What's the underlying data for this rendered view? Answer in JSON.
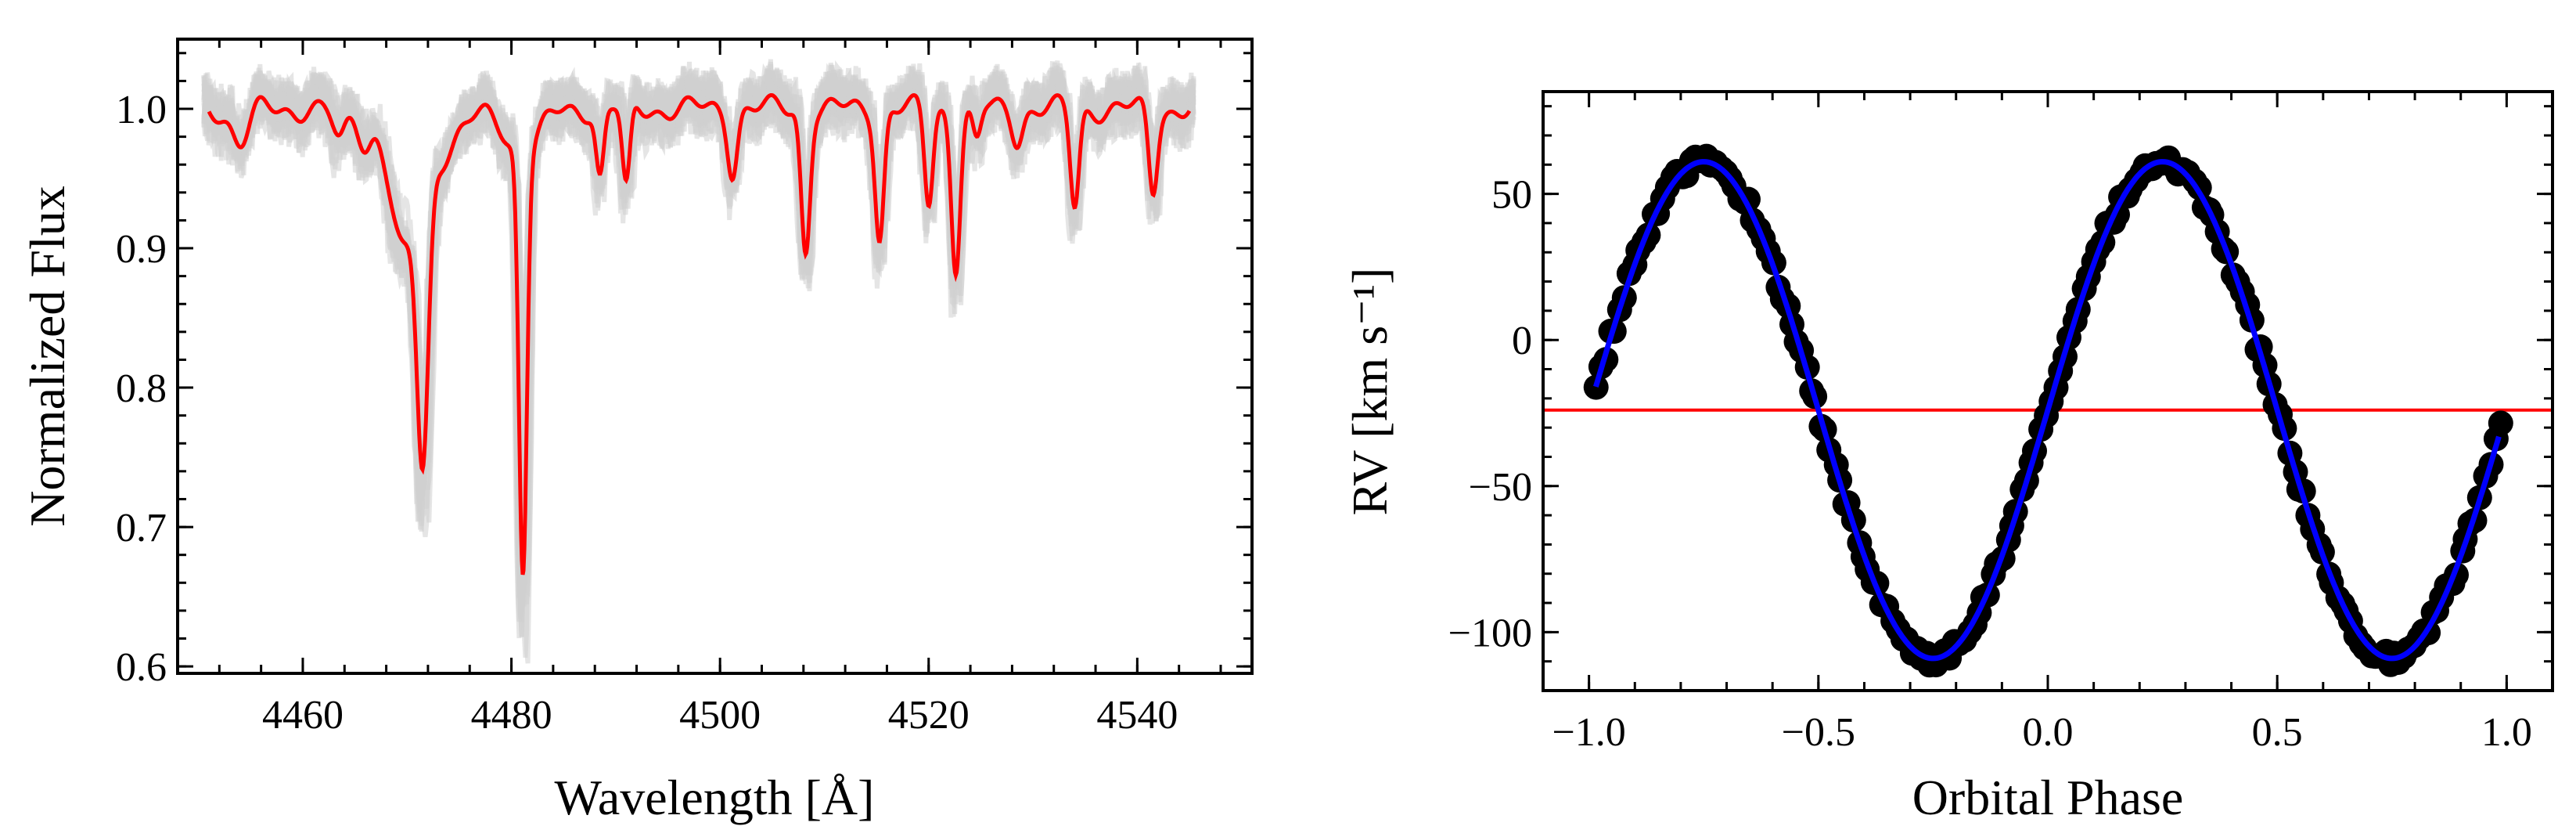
{
  "chart_data": [
    {
      "type": "line",
      "title": "",
      "xlabel": "Wavelength [Å]",
      "ylabel": "Normalized Flux",
      "xlim": [
        4448,
        4551
      ],
      "ylim": [
        0.595,
        1.05
      ],
      "xticks": [
        4460,
        4480,
        4500,
        4520,
        4540
      ],
      "xtick_labels": [
        "4460",
        "4480",
        "4500",
        "4520",
        "4540"
      ],
      "xminor_step": 4,
      "yticks": [
        0.6,
        0.7,
        0.8,
        0.9,
        1.0
      ],
      "ytick_labels": [
        "0.6",
        "0.7",
        "0.8",
        "0.9",
        "1.0"
      ],
      "yminor_step": 0.02,
      "continuum": 1.0,
      "x_start": 4451,
      "x_end": 4545,
      "lines": [
        {
          "center": 4454.0,
          "depth": 0.025,
          "width": 0.8
        },
        {
          "center": 4463.5,
          "depth": 0.025,
          "width": 0.6
        },
        {
          "center": 4466.0,
          "depth": 0.02,
          "width": 0.6
        },
        {
          "center": 4469.5,
          "depth": 0.07,
          "width": 1.1
        },
        {
          "center": 4471.5,
          "depth": 0.2,
          "width": 0.55
        },
        {
          "center": 4471.5,
          "depth": 0.045,
          "width": 2.6
        },
        {
          "center": 4481.1,
          "depth": 0.3,
          "width": 0.38
        },
        {
          "center": 4481.1,
          "depth": 0.03,
          "width": 1.6
        },
        {
          "center": 4488.5,
          "depth": 0.048,
          "width": 0.38
        },
        {
          "center": 4491.0,
          "depth": 0.06,
          "width": 0.38
        },
        {
          "center": 4501.2,
          "depth": 0.042,
          "width": 0.45
        },
        {
          "center": 4508.2,
          "depth": 0.1,
          "width": 0.42
        },
        {
          "center": 4515.3,
          "depth": 0.09,
          "width": 0.42
        },
        {
          "center": 4520.0,
          "depth": 0.068,
          "width": 0.4
        },
        {
          "center": 4522.6,
          "depth": 0.11,
          "width": 0.42
        },
        {
          "center": 4524.6,
          "depth": 0.025,
          "width": 0.4
        },
        {
          "center": 4528.5,
          "depth": 0.02,
          "width": 0.5
        },
        {
          "center": 4534.0,
          "depth": 0.07,
          "width": 0.42
        },
        {
          "center": 4541.5,
          "depth": 0.058,
          "width": 0.42
        }
      ],
      "colors": {
        "mean_spectrum": "#ff0000",
        "individual_spectra": "#cfcfcf"
      }
    },
    {
      "type": "scatter",
      "title": "",
      "xlabel": "Orbital Phase",
      "ylabel": "RV [km s⁻¹]",
      "xlim": [
        -1.1,
        1.1
      ],
      "ylim": [
        -120,
        85
      ],
      "xticks": [
        -1.0,
        -0.5,
        0.0,
        0.5,
        1.0
      ],
      "xtick_labels": [
        "−1.0",
        "−0.5",
        "0.0",
        "0.5",
        "1.0"
      ],
      "xminor_step": 0.1,
      "yticks": [
        -100,
        -50,
        0,
        50
      ],
      "ytick_labels": [
        "−100",
        "−50",
        "0",
        "50"
      ],
      "yminor_step": 10,
      "model": {
        "gamma": -24,
        "K": 85,
        "phase_zero": 0.0
      },
      "systemic_velocity": -24,
      "phase_range": [
        -0.985,
        0.985
      ],
      "n_points": 190,
      "colors": {
        "points": "#000000",
        "model": "#0000ff",
        "systemic": "#ff0000"
      }
    }
  ]
}
